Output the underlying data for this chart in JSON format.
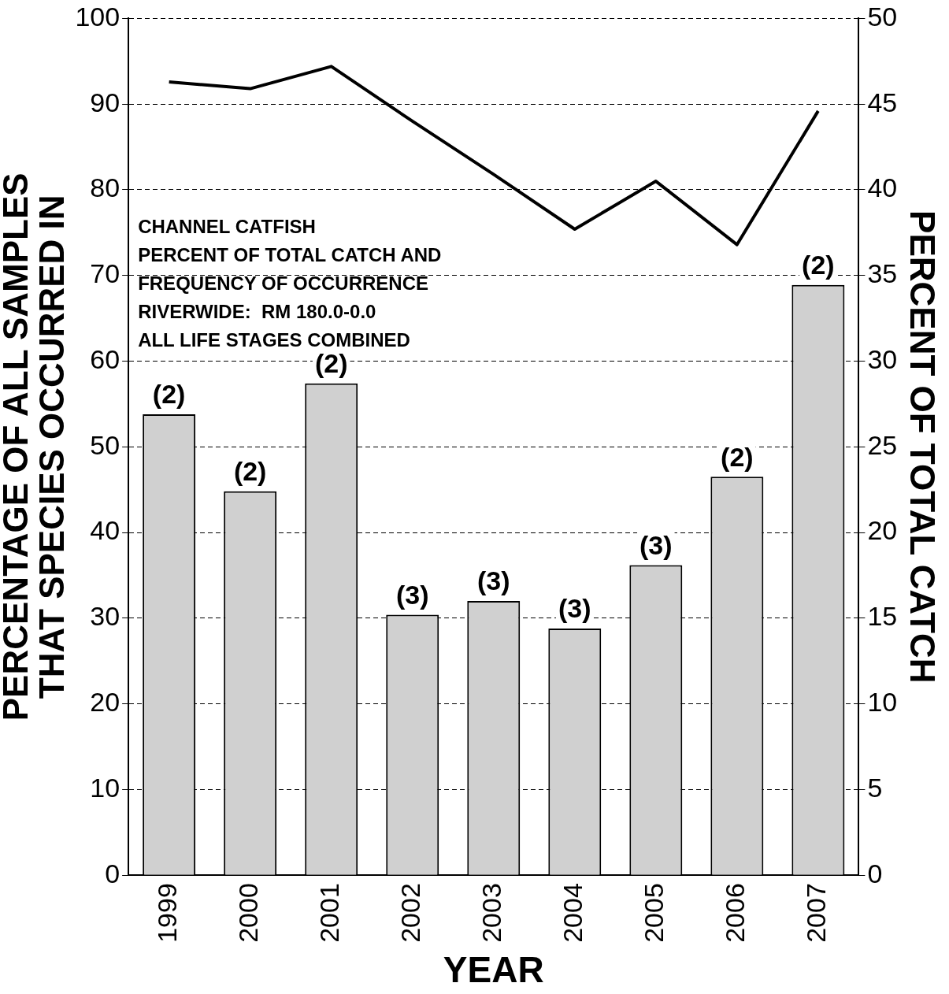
{
  "chart_data": {
    "type": "bar",
    "categories": [
      "1999",
      "2000",
      "2001",
      "2002",
      "2003",
      "2004",
      "2005",
      "2006",
      "2007"
    ],
    "series": [
      {
        "color": "#d0d0d0",
        "values": [
          53.8,
          44.8,
          57.4,
          30.4,
          32.0,
          28.8,
          36.2,
          46.5,
          68.9
        ]
      },
      {
        "type": "line",
        "axis": "y2",
        "color": "#000000",
        "values": [
          46.3,
          45.9,
          47.2,
          44.0,
          40.9,
          37.7,
          40.5,
          36.8,
          44.6
        ]
      }
    ],
    "xlabel": "YEAR",
    "ylabel": "PERCENTAGE OF ALL SAMPLES\nTHAT SPECIES OCCURRED IN",
    "y2label": "PERCENT OF TOTAL CATCH",
    "ylim": [
      0,
      100
    ],
    "yticks": [
      0,
      10,
      20,
      30,
      40,
      50,
      60,
      70,
      80,
      90,
      100
    ],
    "y2lim": [
      0,
      50
    ],
    "y2ticks": [
      0,
      5,
      10,
      15,
      20,
      25,
      30,
      35,
      40,
      45,
      50
    ],
    "grid": "y",
    "legend": false,
    "marker": "none",
    "line_style": "solid",
    "annotations": [
      "CHANNEL CATFISH",
      "PERCENT OF TOTAL CATCH AND",
      "FREQUENCY OF OCCURRENCE",
      "RIVERWIDE:  RM 180.0-0.0",
      "ALL LIFE STAGES COMBINED",
      {
        "text": "(2)",
        "x": "1999",
        "y": 53.8
      },
      {
        "text": "(2)",
        "x": "2000",
        "y": 44.8
      },
      {
        "text": "(2)",
        "x": "2001",
        "y": 57.4
      },
      {
        "text": "(3)",
        "x": "2002",
        "y": 30.4
      },
      {
        "text": "(3)",
        "x": "2003",
        "y": 32.0
      },
      {
        "text": "(3)",
        "x": "2004",
        "y": 28.8
      },
      {
        "text": "(3)",
        "x": "2005",
        "y": 36.2
      },
      {
        "text": "(2)",
        "x": "2006",
        "y": 46.5
      },
      {
        "text": "(2)",
        "x": "2007",
        "y": 68.9
      }
    ]
  }
}
